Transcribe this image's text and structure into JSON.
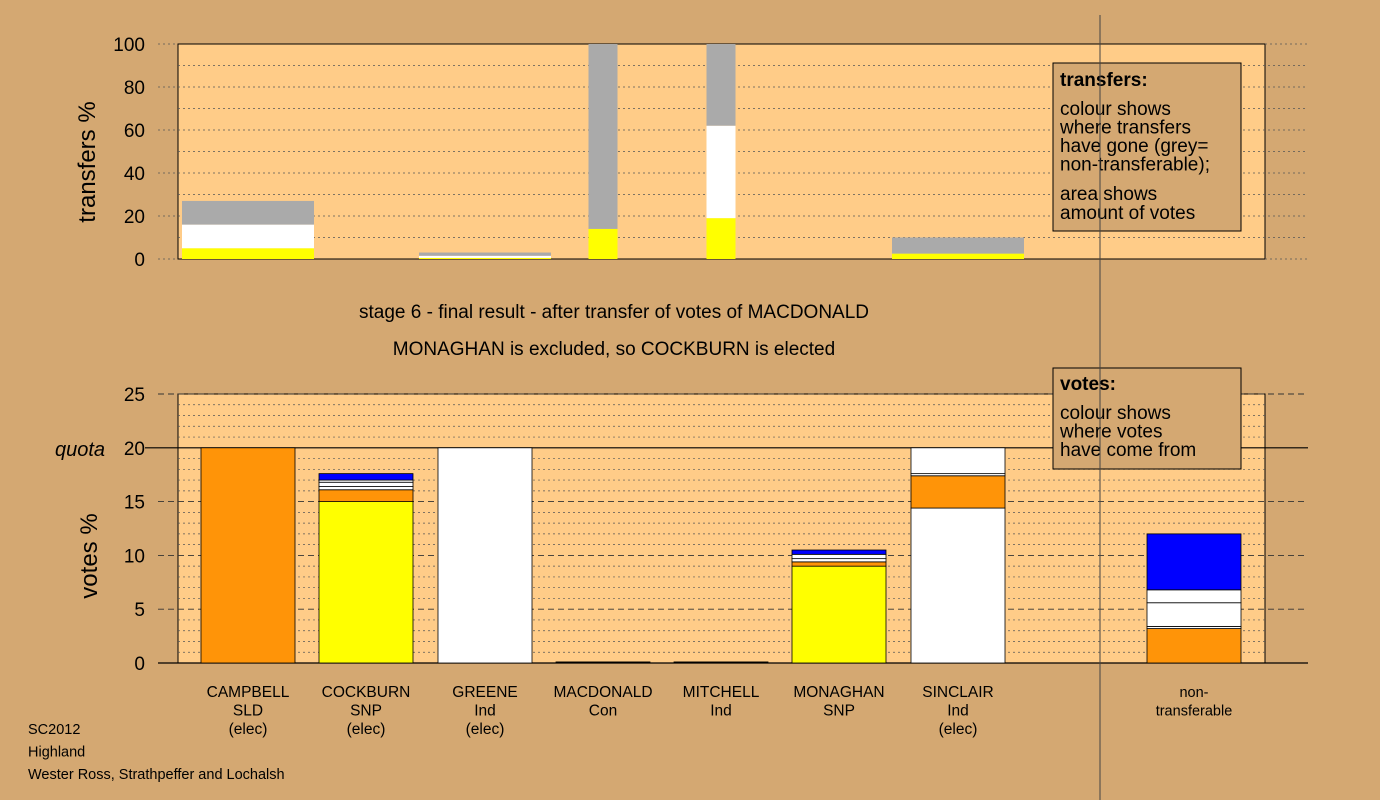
{
  "colors": {
    "background": "#d4a872",
    "plot_bg": "#ffcc88",
    "grey": "#aaaaaa",
    "white": "#ffffff",
    "yellow": "#ffff00",
    "orange": "#ff9408",
    "blue": "#0000ff",
    "black": "#000000"
  },
  "stage_line1": "stage 6 - final result - after transfer of votes of MACDONALD",
  "stage_line2": "MONAGHAN is excluded, so COCKBURN is elected",
  "footer": [
    "SC2012",
    "Highland",
    "Wester Ross, Strathpeffer and Lochalsh"
  ],
  "quota_label": "quota",
  "transfers_legend": {
    "title": "transfers:",
    "lines1": [
      "colour shows",
      "where transfers",
      "have gone (grey=",
      "non-transferable);"
    ],
    "lines2": [
      "area shows",
      "amount of votes"
    ]
  },
  "votes_legend": {
    "title": "votes:",
    "lines": [
      "colour shows",
      "where votes",
      "have come from"
    ]
  },
  "candidates": [
    {
      "lines": [
        "CAMPBELL",
        "SLD",
        "(elec)"
      ]
    },
    {
      "lines": [
        "COCKBURN",
        "SNP",
        "(elec)"
      ]
    },
    {
      "lines": [
        "GREENE",
        "Ind",
        "(elec)"
      ]
    },
    {
      "lines": [
        "MACDONALD",
        "Con"
      ]
    },
    {
      "lines": [
        "MITCHELL",
        "Ind"
      ]
    },
    {
      "lines": [
        "MONAGHAN",
        "SNP"
      ]
    },
    {
      "lines": [
        "SINCLAIR",
        "Ind",
        "(elec)"
      ]
    },
    {
      "lines": [
        "non-",
        "transferable"
      ]
    }
  ],
  "chart_data": [
    {
      "type": "bar",
      "stacked": true,
      "ylabel": "transfers %",
      "ylim": [
        0,
        100
      ],
      "yticks": [
        0,
        20,
        40,
        60,
        80,
        100
      ],
      "bars": [
        {
          "category": "CAMPBELL",
          "width": "wide",
          "segments": [
            {
              "color": "yellow",
              "value": 5
            },
            {
              "color": "white",
              "value": 11
            },
            {
              "color": "grey",
              "value": 11
            }
          ]
        },
        {
          "category": "GREENE",
          "width": "wide",
          "segments": [
            {
              "color": "yellow",
              "value": 0.5
            },
            {
              "color": "white",
              "value": 1
            },
            {
              "color": "grey",
              "value": 1.5
            }
          ]
        },
        {
          "category": "MACDONALD",
          "width": "narrow",
          "segments": [
            {
              "color": "yellow",
              "value": 14
            },
            {
              "color": "grey",
              "value": 86
            }
          ]
        },
        {
          "category": "MITCHELL",
          "width": "narrow",
          "segments": [
            {
              "color": "yellow",
              "value": 19
            },
            {
              "color": "white",
              "value": 43
            },
            {
              "color": "grey",
              "value": 38
            }
          ]
        },
        {
          "category": "SINCLAIR",
          "width": "wide",
          "segments": [
            {
              "color": "yellow",
              "value": 2.5
            },
            {
              "color": "grey",
              "value": 7.5
            }
          ]
        }
      ]
    },
    {
      "type": "bar",
      "stacked": true,
      "ylabel": "votes %",
      "ylim": [
        0,
        25
      ],
      "yticks": [
        0,
        5,
        10,
        15,
        20,
        25
      ],
      "quota": 20,
      "bars": [
        {
          "category": "CAMPBELL",
          "segments": [
            {
              "color": "orange",
              "value": 20
            }
          ]
        },
        {
          "category": "COCKBURN",
          "segments": [
            {
              "color": "yellow",
              "value": 15
            },
            {
              "color": "orange",
              "value": 1.1
            },
            {
              "color": "white",
              "value": 0.3
            },
            {
              "color": "white",
              "value": 0.4
            },
            {
              "color": "white",
              "value": 0.2
            },
            {
              "color": "blue",
              "value": 0.6
            }
          ]
        },
        {
          "category": "GREENE",
          "segments": [
            {
              "color": "white",
              "value": 20
            }
          ]
        },
        {
          "category": "MACDONALD",
          "segments": [
            {
              "color": "black",
              "value": 0.1
            }
          ]
        },
        {
          "category": "MITCHELL",
          "segments": [
            {
              "color": "black",
              "value": 0.1
            }
          ]
        },
        {
          "category": "MONAGHAN",
          "segments": [
            {
              "color": "yellow",
              "value": 9
            },
            {
              "color": "orange",
              "value": 0.4
            },
            {
              "color": "white",
              "value": 0.3
            },
            {
              "color": "white",
              "value": 0.4
            },
            {
              "color": "blue",
              "value": 0.4
            }
          ]
        },
        {
          "category": "SINCLAIR",
          "segments": [
            {
              "color": "white",
              "value": 14.4
            },
            {
              "color": "orange",
              "value": 3
            },
            {
              "color": "white",
              "value": 0.2
            },
            {
              "color": "white",
              "value": 2.4
            }
          ]
        },
        {
          "category": "non-transferable",
          "segments": [
            {
              "color": "orange",
              "value": 3.2
            },
            {
              "color": "white",
              "value": 0.2
            },
            {
              "color": "white",
              "value": 2.2
            },
            {
              "color": "white",
              "value": 1.2
            },
            {
              "color": "blue",
              "value": 5.2
            }
          ]
        }
      ]
    }
  ]
}
